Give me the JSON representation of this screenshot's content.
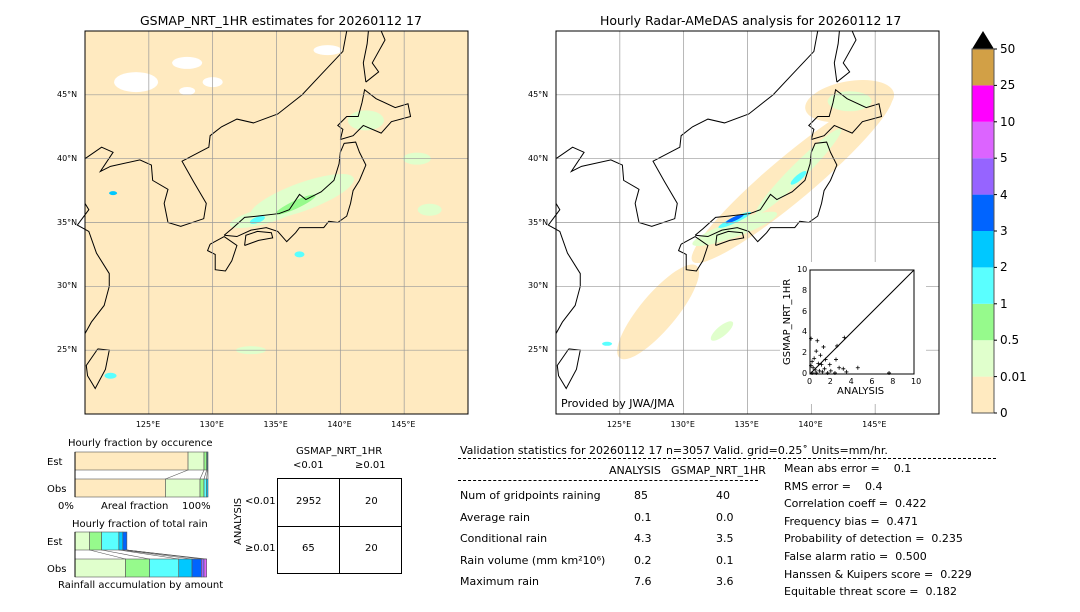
{
  "left_map": {
    "title": "GSMAP_NRT_1HR estimates for 20260112 17"
  },
  "right_map": {
    "title": "Hourly Radar-AMeDAS analysis for 20260112 17",
    "credit": "Provided by JWA/JMA"
  },
  "map_axes": {
    "lon_labels": [
      "125°E",
      "130°E",
      "135°E",
      "140°E",
      "145°E"
    ],
    "lat_labels": [
      "45°N",
      "40°N",
      "35°N",
      "30°N",
      "25°N"
    ],
    "lon_range": [
      120,
      150
    ],
    "lat_range": [
      20,
      50
    ]
  },
  "colorbar": {
    "levels": [
      "0",
      "0.01",
      "0.5",
      "1",
      "2",
      "3",
      "4",
      "5",
      "10",
      "25",
      "50"
    ],
    "colors": [
      "#ffeac0",
      "#e0ffcc",
      "#96fa8c",
      "#5affff",
      "#00c8ff",
      "#0064ff",
      "#9664ff",
      "#dc64ff",
      "#ff00ff",
      "#d2a046"
    ],
    "extend_color": "#000000"
  },
  "chart_data": [
    {
      "type": "scatter",
      "xlabel": "ANALYSIS",
      "ylabel": "GSMAP_NRT_1HR",
      "xlim": [
        0,
        10
      ],
      "ylim": [
        0,
        10
      ],
      "xticks": [
        "0",
        "2",
        "4",
        "6",
        "8",
        "10"
      ],
      "yticks": [
        "0",
        "2",
        "4",
        "6",
        "8",
        "10"
      ],
      "points": [
        [
          0.1,
          3.4
        ],
        [
          0.7,
          3.2
        ],
        [
          3.3,
          3.5
        ],
        [
          2.6,
          2.7
        ],
        [
          1.3,
          2.6
        ],
        [
          0.6,
          2.2
        ],
        [
          1.0,
          1.8
        ],
        [
          0.4,
          1.5
        ],
        [
          1.5,
          1.4
        ],
        [
          2.5,
          1.4
        ],
        [
          0.2,
          1.2
        ],
        [
          0.8,
          1.0
        ],
        [
          1.1,
          0.9
        ],
        [
          1.9,
          0.9
        ],
        [
          2.8,
          0.6
        ],
        [
          3.2,
          0.5
        ],
        [
          4.6,
          0.6
        ],
        [
          3.5,
          0.2
        ],
        [
          7.6,
          0.1
        ],
        [
          0.3,
          0.6
        ],
        [
          0.5,
          0.4
        ],
        [
          0.9,
          0.3
        ],
        [
          1.4,
          0.5
        ],
        [
          0.2,
          0.1
        ],
        [
          0.6,
          0.1
        ],
        [
          1.2,
          0.2
        ],
        [
          2.0,
          0.3
        ],
        [
          1.7,
          0.1
        ],
        [
          2.4,
          0.1
        ],
        [
          0.1,
          0.8
        ]
      ],
      "diagonal": true
    },
    {
      "type": "bar",
      "title": "Hourly fraction by occurence",
      "xlabel": "Areal fraction",
      "xtick_labels": [
        "0%",
        "100%"
      ],
      "categories": [
        "Est",
        "Obs"
      ],
      "series": [
        {
          "color": "#ffeac0",
          "values": [
            0.85,
            0.68
          ]
        },
        {
          "color": "#e0ffcc",
          "values": [
            0.12,
            0.26
          ]
        },
        {
          "color": "#96fa8c",
          "values": [
            0.02,
            0.03
          ]
        },
        {
          "color": "#5affff",
          "values": [
            0.005,
            0.02
          ]
        },
        {
          "color": "#00c8ff",
          "values": [
            0.005,
            0.01
          ]
        }
      ]
    },
    {
      "type": "bar",
      "title": "Hourly fraction of total rain",
      "xlabel": "Rainfall accumulation by amount",
      "categories": [
        "Est",
        "Obs"
      ],
      "series": [
        {
          "color": "#e0ffcc",
          "values": [
            0.11,
            0.38
          ]
        },
        {
          "color": "#96fa8c",
          "values": [
            0.09,
            0.18
          ]
        },
        {
          "color": "#5affff",
          "values": [
            0.13,
            0.22
          ]
        },
        {
          "color": "#00c8ff",
          "values": [
            0.03,
            0.1
          ]
        },
        {
          "color": "#0064ff",
          "values": [
            0.03,
            0.07
          ]
        },
        {
          "color": "#9664ff",
          "values": [
            0,
            0.02
          ]
        },
        {
          "color": "#dc64ff",
          "values": [
            0,
            0.02
          ]
        }
      ]
    },
    {
      "type": "table",
      "title": "GSMAP_NRT_1HR",
      "row_label": "ANALYSIS",
      "col_headers": [
        "<0.01",
        "≥0.01"
      ],
      "row_headers": [
        "<0.01",
        "≥0.01"
      ],
      "cells": [
        [
          "2952",
          "20"
        ],
        [
          "65",
          "20"
        ]
      ]
    }
  ],
  "stats": {
    "header": "Validation statistics for 20260112 17  n=3057 Valid. grid=0.25˚ Units=mm/hr.",
    "col_analysis": "ANALYSIS",
    "col_gsmap": "GSMAP_NRT_1HR",
    "rows": [
      {
        "label": "Num of gridpoints raining",
        "analysis": "85",
        "gsmap": "40"
      },
      {
        "label": "Average rain",
        "analysis": "0.1",
        "gsmap": "0.0"
      },
      {
        "label": "Conditional rain",
        "analysis": "4.3",
        "gsmap": "3.5"
      },
      {
        "label": "Rain volume (mm km²10⁶)",
        "analysis": "0.2",
        "gsmap": "0.1"
      },
      {
        "label": "Maximum rain",
        "analysis": "7.6",
        "gsmap": "3.6"
      }
    ],
    "scores": [
      "Mean abs error =    0.1",
      "RMS error =    0.4",
      "Correlation coeff =  0.422",
      "Frequency bias =  0.471",
      "Probability of detection =  0.235",
      "False alarm ratio =  0.500",
      "Hanssen & Kuipers score =  0.229",
      "Equitable threat score =  0.182"
    ]
  }
}
